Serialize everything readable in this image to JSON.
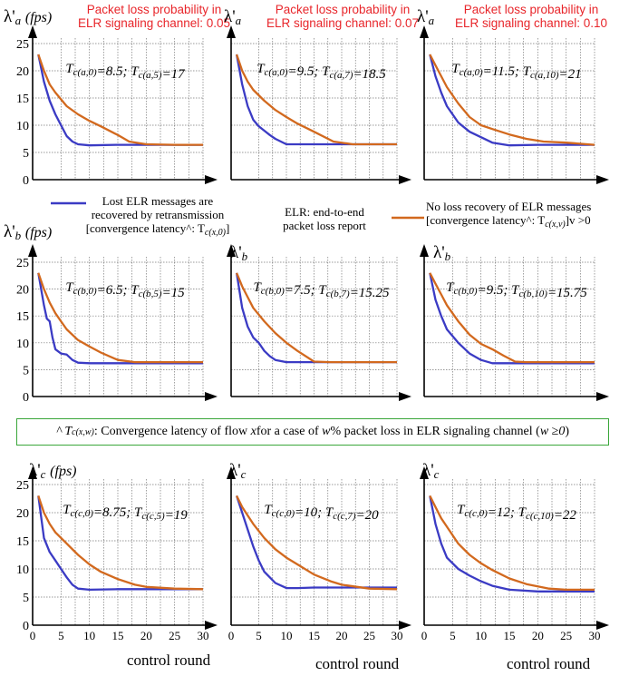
{
  "panel_headers": [
    {
      "line1": "Packet loss probability in",
      "line2": "ELR signaling channel: 0.05"
    },
    {
      "line1": "Packet loss probability in",
      "line2": "ELR signaling channel: 0.07"
    },
    {
      "line1": "Packet loss probability in",
      "line2": "ELR signaling channel: 0.10"
    }
  ],
  "legend": {
    "blue_line1": "Lost ELR messages are",
    "blue_line2": "recovered by retransmission",
    "blue_line3": "[convergence latency^: T",
    "blue_line3_sub": "c(x,0)",
    "blue_line3_end": "]",
    "mid_line1": "ELR: end-to-end",
    "mid_line2": "packet loss report",
    "orange_line1": "No loss recovery of ELR messages",
    "orange_line2": "[convergence latency^: T",
    "orange_line2_sub": "c(x,v)",
    "orange_line2_end": "]v >0"
  },
  "note": {
    "prefix": "^  T",
    "prefix_sub": "c(x,w)",
    "mid1": ": Convergence latency of flow ",
    "var_x": "x",
    "mid2": " for a case of ",
    "var_w": "w",
    "mid3": "% packet loss in ELR signaling channel (",
    "var_cond": "w ≥0",
    "end": ")"
  },
  "colors": {
    "blue": "#3b3bc4",
    "orange": "#d2691e",
    "header_red": "#e8262b",
    "note_border": "#3aa63a"
  },
  "xlabel": "control round",
  "row_labels": [
    {
      "sym": "λ'",
      "sub": "a",
      "unit": "(fps)"
    },
    {
      "sym": "λ'",
      "sub": "b",
      "unit": "(fps)"
    },
    {
      "sym": "λ'",
      "sub": "c",
      "unit": "(fps)"
    }
  ],
  "chart_data": [
    {
      "type": "line",
      "row": 0,
      "col": 0,
      "ylabel": "λ'a (fps)",
      "ylim": [
        0,
        25
      ],
      "yticks": [
        0,
        5,
        10,
        15,
        20,
        25
      ],
      "xlim": [
        0,
        30
      ],
      "xticks": [],
      "grid": true,
      "annotation": {
        "t": "T",
        "s1": "c(a,0)",
        "v1": "=8.5; ",
        "t2": "T",
        "s2": "c(a,5)",
        "v2": "=17"
      },
      "series": [
        {
          "color": "blue",
          "x": [
            1,
            2,
            3,
            4,
            5,
            6,
            7,
            8,
            10,
            15,
            20,
            25,
            30
          ],
          "values": [
            23,
            18,
            14.5,
            12,
            10,
            8,
            7,
            6.5,
            6.3,
            6.4,
            6.4,
            6.4,
            6.4
          ]
        },
        {
          "color": "orange",
          "x": [
            1,
            2,
            3,
            4,
            6,
            8,
            10,
            12,
            15,
            17,
            20,
            25,
            30
          ],
          "values": [
            23,
            20,
            17.5,
            16,
            13.5,
            12,
            10.8,
            9.8,
            8.2,
            7,
            6.5,
            6.4,
            6.4
          ]
        }
      ]
    },
    {
      "type": "line",
      "row": 0,
      "col": 1,
      "ylabel": "λ'a",
      "ylim": [
        0,
        25
      ],
      "yticks": [],
      "xlim": [
        0,
        30
      ],
      "xticks": [],
      "grid": true,
      "annotation": {
        "t": "T",
        "s1": "c(a,0)",
        "v1": "=9.5; ",
        "t2": "T",
        "s2": "c(a,7)",
        "v2": "=18.5"
      },
      "series": [
        {
          "color": "blue",
          "x": [
            1,
            2,
            3,
            4,
            5,
            6,
            7,
            8,
            10,
            15,
            20,
            25,
            30
          ],
          "values": [
            23,
            17.5,
            13.5,
            11,
            9.8,
            9,
            8.2,
            7.5,
            6.5,
            6.5,
            6.5,
            6.5,
            6.5
          ]
        },
        {
          "color": "orange",
          "x": [
            1,
            2,
            3,
            4,
            6,
            8,
            10,
            12,
            15,
            18.5,
            22,
            26,
            30
          ],
          "values": [
            23,
            20,
            18,
            16.5,
            14.5,
            12.8,
            11.5,
            10.3,
            8.8,
            7,
            6.5,
            6.5,
            6.5
          ]
        }
      ]
    },
    {
      "type": "line",
      "row": 0,
      "col": 2,
      "ylabel": "λ'a",
      "ylim": [
        0,
        25
      ],
      "yticks": [],
      "xlim": [
        0,
        30
      ],
      "xticks": [],
      "grid": true,
      "annotation": {
        "t": "T",
        "s1": "c(a,0)",
        "v1": "=11.5; ",
        "t2": "T",
        "s2": "c(a,10)",
        "v2": "=21"
      },
      "series": [
        {
          "color": "blue",
          "x": [
            1,
            2,
            3,
            4,
            6,
            8,
            10,
            12,
            15,
            20,
            25,
            30
          ],
          "values": [
            23,
            19,
            16,
            13.5,
            10.5,
            8.8,
            7.8,
            6.8,
            6.3,
            6.4,
            6.4,
            6.4
          ]
        },
        {
          "color": "orange",
          "x": [
            1,
            2,
            3,
            4,
            6,
            8,
            10,
            12,
            15,
            18,
            21,
            25,
            30
          ],
          "values": [
            23,
            21,
            19,
            17,
            14,
            11.5,
            10,
            9.3,
            8.3,
            7.5,
            7,
            6.8,
            6.4
          ]
        }
      ]
    },
    {
      "type": "line",
      "row": 1,
      "col": 0,
      "ylabel": "λ'b (fps)",
      "ylim": [
        0,
        25
      ],
      "yticks": [
        0,
        5,
        10,
        15,
        20,
        25
      ],
      "xlim": [
        0,
        30
      ],
      "xticks": [],
      "grid": true,
      "annotation": {
        "t": "T",
        "s1": "c(b,0)",
        "v1": "=6.5; ",
        "t2": "T",
        "s2": "c(b,5)",
        "v2": "=15"
      },
      "series": [
        {
          "color": "blue",
          "x": [
            1,
            2,
            2.5,
            3,
            3.5,
            4,
            5,
            6,
            7,
            8,
            10,
            15,
            20,
            30
          ],
          "values": [
            23,
            17,
            14.5,
            14,
            11,
            8.8,
            8,
            7.8,
            6.8,
            6.3,
            6.2,
            6.2,
            6.2,
            6.2
          ]
        },
        {
          "color": "orange",
          "x": [
            1,
            2,
            3,
            4,
            5,
            6,
            8,
            10,
            12,
            15,
            18,
            20,
            25,
            30
          ],
          "values": [
            23,
            20,
            17.5,
            15.5,
            14,
            12.5,
            10.5,
            9.3,
            8.2,
            6.8,
            6.4,
            6.4,
            6.4,
            6.4
          ]
        }
      ]
    },
    {
      "type": "line",
      "row": 1,
      "col": 1,
      "ylabel": "λ'b",
      "ylim": [
        0,
        25
      ],
      "yticks": [],
      "xlim": [
        0,
        30
      ],
      "xticks": [],
      "grid": true,
      "annotation": {
        "t": "T",
        "s1": "c(b,0)",
        "v1": "=7.5; ",
        "t2": "T",
        "s2": "c(b,7)",
        "v2": "=15.25"
      },
      "series": [
        {
          "color": "blue",
          "x": [
            1,
            2,
            3,
            4,
            5,
            6,
            7,
            8,
            10,
            15,
            20,
            25,
            30
          ],
          "values": [
            23,
            16.5,
            13,
            11,
            10,
            8.5,
            7.5,
            6.8,
            6.4,
            6.4,
            6.4,
            6.4,
            6.4
          ]
        },
        {
          "color": "orange",
          "x": [
            1,
            2,
            3,
            4,
            6,
            8,
            10,
            12,
            15,
            18,
            20,
            25,
            30
          ],
          "values": [
            23,
            20.5,
            18.5,
            16.5,
            14,
            11.8,
            10,
            8.5,
            6.5,
            6.4,
            6.4,
            6.4,
            6.4
          ]
        }
      ]
    },
    {
      "type": "line",
      "row": 1,
      "col": 2,
      "ylabel": "λ'b",
      "ylim": [
        0,
        25
      ],
      "yticks": [],
      "xlim": [
        0,
        30
      ],
      "xticks": [],
      "grid": true,
      "annotation": {
        "t": "T",
        "s1": "c(b,0)",
        "v1": "=9.5; ",
        "t2": "T",
        "s2": "c(b,10)",
        "v2": "=15.75"
      },
      "series": [
        {
          "color": "blue",
          "x": [
            1,
            2,
            3,
            4,
            6,
            8,
            10,
            12,
            15,
            20,
            25,
            30
          ],
          "values": [
            23,
            18,
            15,
            12.5,
            10,
            8,
            6.8,
            6.2,
            6.2,
            6.2,
            6.2,
            6.2
          ]
        },
        {
          "color": "orange",
          "x": [
            1,
            2,
            3,
            4,
            6,
            8,
            10,
            12,
            14,
            16,
            18,
            20,
            25,
            30
          ],
          "values": [
            23,
            21,
            19,
            17,
            14,
            11.5,
            9.8,
            8.8,
            7.6,
            6.5,
            6.4,
            6.4,
            6.4,
            6.4
          ]
        }
      ]
    },
    {
      "type": "line",
      "row": 2,
      "col": 0,
      "ylabel": "λ'c (fps)",
      "ylim": [
        0,
        25
      ],
      "yticks": [
        0,
        5,
        10,
        15,
        20,
        25
      ],
      "xlim": [
        0,
        30
      ],
      "xticks": [
        0,
        5,
        10,
        15,
        20,
        25,
        30
      ],
      "xlabel": "control round",
      "grid": true,
      "annotation": {
        "t": "T",
        "s1": "c(c,0)",
        "v1": "=8.75; ",
        "t2": "T",
        "s2": "c(c,5)",
        "v2": "=19"
      },
      "series": [
        {
          "color": "blue",
          "x": [
            1,
            2,
            3,
            4,
            5,
            6,
            7,
            8,
            10,
            15,
            20,
            25,
            30
          ],
          "values": [
            23,
            15.5,
            13,
            11.5,
            10,
            8.5,
            7.2,
            6.5,
            6.3,
            6.4,
            6.4,
            6.4,
            6.4
          ]
        },
        {
          "color": "orange",
          "x": [
            1,
            2,
            3,
            4,
            6,
            8,
            10,
            12,
            15,
            18,
            20,
            25,
            30
          ],
          "values": [
            23,
            20,
            18,
            16.5,
            14.5,
            12.5,
            10.8,
            9.5,
            8.2,
            7.2,
            6.8,
            6.5,
            6.4
          ]
        }
      ]
    },
    {
      "type": "line",
      "row": 2,
      "col": 1,
      "ylabel": "λ'c",
      "ylim": [
        0,
        25
      ],
      "yticks": [],
      "xlim": [
        0,
        30
      ],
      "xticks": [
        0,
        5,
        10,
        15,
        20,
        25,
        30
      ],
      "xlabel": "control round",
      "grid": true,
      "annotation": {
        "t": "T",
        "s1": "c(c,0)",
        "v1": "=10; ",
        "t2": "T",
        "s2": "c(c,7)",
        "v2": "=20"
      },
      "series": [
        {
          "color": "blue",
          "x": [
            1,
            2,
            3,
            4,
            5,
            6,
            8,
            10,
            12,
            15,
            20,
            25,
            30
          ],
          "values": [
            23,
            20,
            17,
            14,
            11.5,
            9.5,
            7.5,
            6.6,
            6.6,
            6.7,
            6.7,
            6.7,
            6.7
          ]
        },
        {
          "color": "orange",
          "x": [
            1,
            2,
            3,
            4,
            6,
            8,
            10,
            12,
            15,
            18,
            20,
            25,
            30
          ],
          "values": [
            23,
            21,
            19.5,
            18,
            15.5,
            13.5,
            12,
            10.8,
            9,
            7.8,
            7.2,
            6.5,
            6.4
          ]
        }
      ]
    },
    {
      "type": "line",
      "row": 2,
      "col": 2,
      "ylabel": "λ'c",
      "ylim": [
        0,
        25
      ],
      "yticks": [],
      "xlim": [
        0,
        30
      ],
      "xticks": [
        0,
        5,
        10,
        15,
        20,
        25,
        30
      ],
      "xlabel": "control round",
      "grid": true,
      "annotation": {
        "t": "T",
        "s1": "c(c,0)",
        "v1": "=12; ",
        "t2": "T",
        "s2": "c(c,10)",
        "v2": "=22"
      },
      "series": [
        {
          "color": "blue",
          "x": [
            1,
            2,
            3,
            4,
            6,
            8,
            10,
            12,
            15,
            20,
            25,
            30
          ],
          "values": [
            23,
            18,
            14.5,
            12,
            10,
            8.8,
            7.8,
            7,
            6.3,
            6,
            6,
            6
          ]
        },
        {
          "color": "orange",
          "x": [
            1,
            2,
            3,
            4,
            6,
            8,
            10,
            12,
            15,
            18,
            22,
            25,
            30
          ],
          "values": [
            23,
            21,
            19,
            17.5,
            14.5,
            12.5,
            11,
            9.8,
            8.3,
            7.3,
            6.5,
            6.3,
            6.3
          ]
        }
      ]
    }
  ]
}
